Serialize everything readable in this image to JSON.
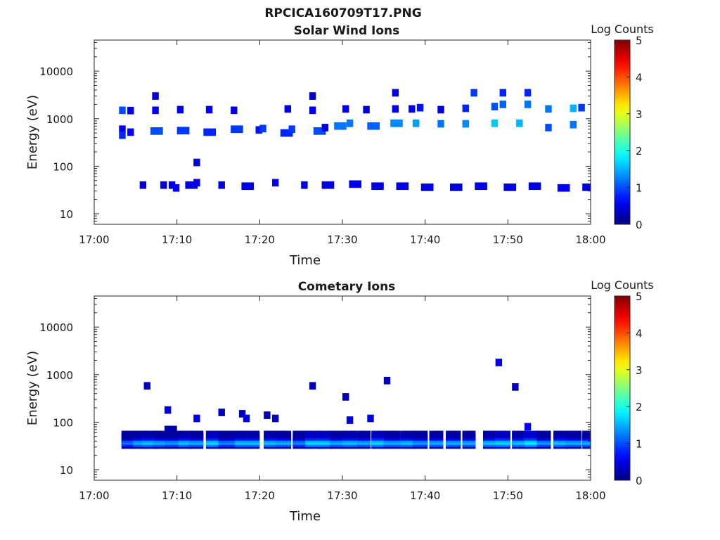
{
  "figure_title": "RPCICA160709T17.PNG",
  "chart_data": [
    {
      "type": "heatmap",
      "title": "Solar Wind Ions",
      "xlabel": "Time",
      "ylabel": "Energy (eV)",
      "x_ticks": [
        "17:00",
        "17:10",
        "17:20",
        "17:30",
        "17:40",
        "17:50",
        "18:00"
      ],
      "xlim_minutes": [
        0,
        60
      ],
      "y_ticks": [
        "10",
        "100",
        "1000",
        "10000"
      ],
      "ylim": [
        6,
        45000
      ],
      "y_scale": "log",
      "colorbar": {
        "label": "Log Counts",
        "range": [
          0,
          5
        ],
        "ticks": [
          "0",
          "1",
          "2",
          "3",
          "4",
          "5"
        ],
        "colormap": "jet"
      },
      "cells": [
        [
          3,
          1500,
          0.8,
          1.0
        ],
        [
          4,
          1480,
          0.8,
          0.5
        ],
        [
          3,
          600,
          0.8,
          0.5
        ],
        [
          3,
          450,
          0.8,
          0.8
        ],
        [
          4,
          520,
          0.8,
          0.6
        ],
        [
          5.5,
          40,
          0.8,
          0.4
        ],
        [
          7,
          3000,
          0.8,
          0.4
        ],
        [
          7,
          1500,
          0.8,
          0.6
        ],
        [
          6.8,
          550,
          1.5,
          1.0
        ],
        [
          8,
          40,
          0.8,
          0.4
        ],
        [
          9,
          40,
          0.8,
          0.4
        ],
        [
          9.5,
          35,
          0.8,
          0.6
        ],
        [
          10,
          1550,
          0.8,
          0.6
        ],
        [
          10,
          560,
          1.5,
          0.9
        ],
        [
          11,
          40,
          1.5,
          0.5
        ],
        [
          12,
          45,
          0.8,
          0.5
        ],
        [
          12,
          120,
          0.8,
          0.4
        ],
        [
          13.5,
          1550,
          0.8,
          0.6
        ],
        [
          13.2,
          520,
          1.5,
          0.8
        ],
        [
          15,
          40,
          0.8,
          0.5
        ],
        [
          16.5,
          1500,
          0.8,
          0.5
        ],
        [
          16.5,
          600,
          1.5,
          0.9
        ],
        [
          17.8,
          38,
          1.5,
          0.5
        ],
        [
          19.5,
          580,
          0.8,
          0.7
        ],
        [
          20,
          620,
          0.8,
          0.9
        ],
        [
          21.5,
          45,
          0.8,
          0.5
        ],
        [
          22.5,
          500,
          1.5,
          0.8
        ],
        [
          23,
          1600,
          0.8,
          0.5
        ],
        [
          23.5,
          600,
          0.8,
          0.9
        ],
        [
          25,
          40,
          0.8,
          0.5
        ],
        [
          26,
          3000,
          0.8,
          0.4
        ],
        [
          26,
          1500,
          0.8,
          0.6
        ],
        [
          26.5,
          550,
          1.5,
          1.0
        ],
        [
          27.5,
          650,
          0.8,
          0.5
        ],
        [
          27.5,
          40,
          1.5,
          0.5
        ],
        [
          29,
          700,
          1.5,
          1.2
        ],
        [
          30,
          1600,
          0.8,
          0.6
        ],
        [
          30.5,
          800,
          0.8,
          1.2
        ],
        [
          30.8,
          42,
          1.5,
          0.5
        ],
        [
          32.5,
          1550,
          0.8,
          0.4
        ],
        [
          33,
          700,
          1.5,
          1.1
        ],
        [
          33.5,
          38,
          1.5,
          0.5
        ],
        [
          36,
          3500,
          0.8,
          0.5
        ],
        [
          36,
          1600,
          0.8,
          0.6
        ],
        [
          35.8,
          800,
          1.5,
          1.3
        ],
        [
          36.5,
          38,
          1.5,
          0.5
        ],
        [
          38,
          1600,
          0.8,
          0.6
        ],
        [
          38.5,
          800,
          0.8,
          1.4
        ],
        [
          39,
          1700,
          0.8,
          0.7
        ],
        [
          39.5,
          36,
          1.5,
          0.5
        ],
        [
          41.5,
          1550,
          0.8,
          0.5
        ],
        [
          41.5,
          780,
          0.8,
          1.2
        ],
        [
          43,
          36,
          1.5,
          0.5
        ],
        [
          44.5,
          1650,
          0.8,
          0.8
        ],
        [
          44.5,
          780,
          0.8,
          1.3
        ],
        [
          45.5,
          3500,
          0.8,
          0.9
        ],
        [
          46,
          38,
          1.5,
          0.5
        ],
        [
          48,
          1800,
          0.8,
          1.0
        ],
        [
          48,
          800,
          0.8,
          1.6
        ],
        [
          49,
          3500,
          0.8,
          0.8
        ],
        [
          49,
          2000,
          0.8,
          1.1
        ],
        [
          49.5,
          36,
          1.5,
          0.5
        ],
        [
          51,
          800,
          0.8,
          1.5
        ],
        [
          52,
          3500,
          0.8,
          0.8
        ],
        [
          52,
          2000,
          0.8,
          1.2
        ],
        [
          52.5,
          38,
          1.5,
          0.5
        ],
        [
          54.5,
          1600,
          0.8,
          1.2
        ],
        [
          54.5,
          650,
          0.8,
          1.0
        ],
        [
          56,
          35,
          1.5,
          0.6
        ],
        [
          57.5,
          1650,
          0.8,
          1.5
        ],
        [
          57.5,
          750,
          0.8,
          1.2
        ],
        [
          58.5,
          1700,
          0.8,
          0.9
        ],
        [
          59,
          36,
          1.5,
          0.5
        ]
      ]
    },
    {
      "type": "heatmap",
      "title": "Cometary Ions",
      "xlabel": "Time",
      "ylabel": "Energy (eV)",
      "x_ticks": [
        "17:00",
        "17:10",
        "17:20",
        "17:30",
        "17:40",
        "17:50",
        "18:00"
      ],
      "xlim_minutes": [
        0,
        60
      ],
      "y_ticks": [
        "10",
        "100",
        "1000",
        "10000"
      ],
      "ylim": [
        6,
        45000
      ],
      "y_scale": "log",
      "colorbar": {
        "label": "Log Counts",
        "range": [
          0,
          5
        ],
        "ticks": [
          "0",
          "1",
          "2",
          "3",
          "4",
          "5"
        ],
        "colormap": "jet"
      },
      "band": [
        [
          3.3,
          1.6,
          1.2
        ],
        [
          4.7,
          1.8,
          1.5
        ],
        [
          5.8,
          2.0,
          1.6
        ],
        [
          7.2,
          2.0,
          1.5
        ],
        [
          8.5,
          1.9,
          1.4
        ],
        [
          10.2,
          1.7,
          1.6
        ],
        [
          11.5,
          1.7,
          1.5
        ],
        [
          13.5,
          1.7,
          1.7
        ],
        [
          15,
          2.0,
          1.3
        ],
        [
          17,
          1.7,
          1.6
        ],
        [
          18.5,
          1.5,
          1.6
        ],
        [
          20.5,
          1.6,
          1.6
        ],
        [
          22,
          1.8,
          1.5
        ],
        [
          24,
          1.9,
          1.3
        ],
        [
          25.5,
          2.0,
          1.7
        ],
        [
          27,
          1.8,
          1.7
        ],
        [
          28.5,
          1.7,
          1.5
        ],
        [
          30,
          1.8,
          1.6
        ],
        [
          31.8,
          1.6,
          1.5
        ],
        [
          33.5,
          1.6,
          1.7
        ],
        [
          35,
          2.0,
          1.5
        ],
        [
          37,
          1.8,
          1.6
        ],
        [
          38.5,
          1.8,
          1.4
        ],
        [
          40.5,
          1.7,
          1.5
        ],
        [
          42.5,
          1.8,
          1.5
        ],
        [
          44.5,
          1.6,
          1.5
        ],
        [
          47,
          1.6,
          1.6
        ],
        [
          48.5,
          1.8,
          1.7
        ],
        [
          50.5,
          1.7,
          1.6
        ],
        [
          52,
          1.8,
          1.8
        ],
        [
          53.5,
          1.7,
          1.4
        ],
        [
          55.5,
          1.8,
          1.6
        ],
        [
          57,
          1.9,
          1.5
        ],
        [
          59,
          1.6,
          1.5
        ]
      ],
      "cells": [
        [
          6,
          580,
          0.8,
          0.3
        ],
        [
          8.5,
          180,
          0.8,
          0.4
        ],
        [
          8.5,
          70,
          1.5,
          0.2
        ],
        [
          12,
          120,
          0.8,
          0.5
        ],
        [
          15,
          160,
          0.8,
          0.3
        ],
        [
          17.5,
          150,
          0.8,
          0.3
        ],
        [
          18,
          120,
          0.8,
          0.5
        ],
        [
          20.5,
          140,
          0.8,
          0.3
        ],
        [
          21.5,
          120,
          0.8,
          0.3
        ],
        [
          26,
          580,
          0.8,
          0.3
        ],
        [
          30,
          340,
          0.8,
          0.3
        ],
        [
          30.5,
          110,
          0.8,
          0.4
        ],
        [
          33,
          120,
          0.8,
          0.5
        ],
        [
          35,
          750,
          0.8,
          0.3
        ],
        [
          48.5,
          1800,
          0.8,
          0.5
        ],
        [
          50.5,
          550,
          0.8,
          0.3
        ],
        [
          52,
          80,
          0.8,
          0.6
        ]
      ]
    }
  ]
}
